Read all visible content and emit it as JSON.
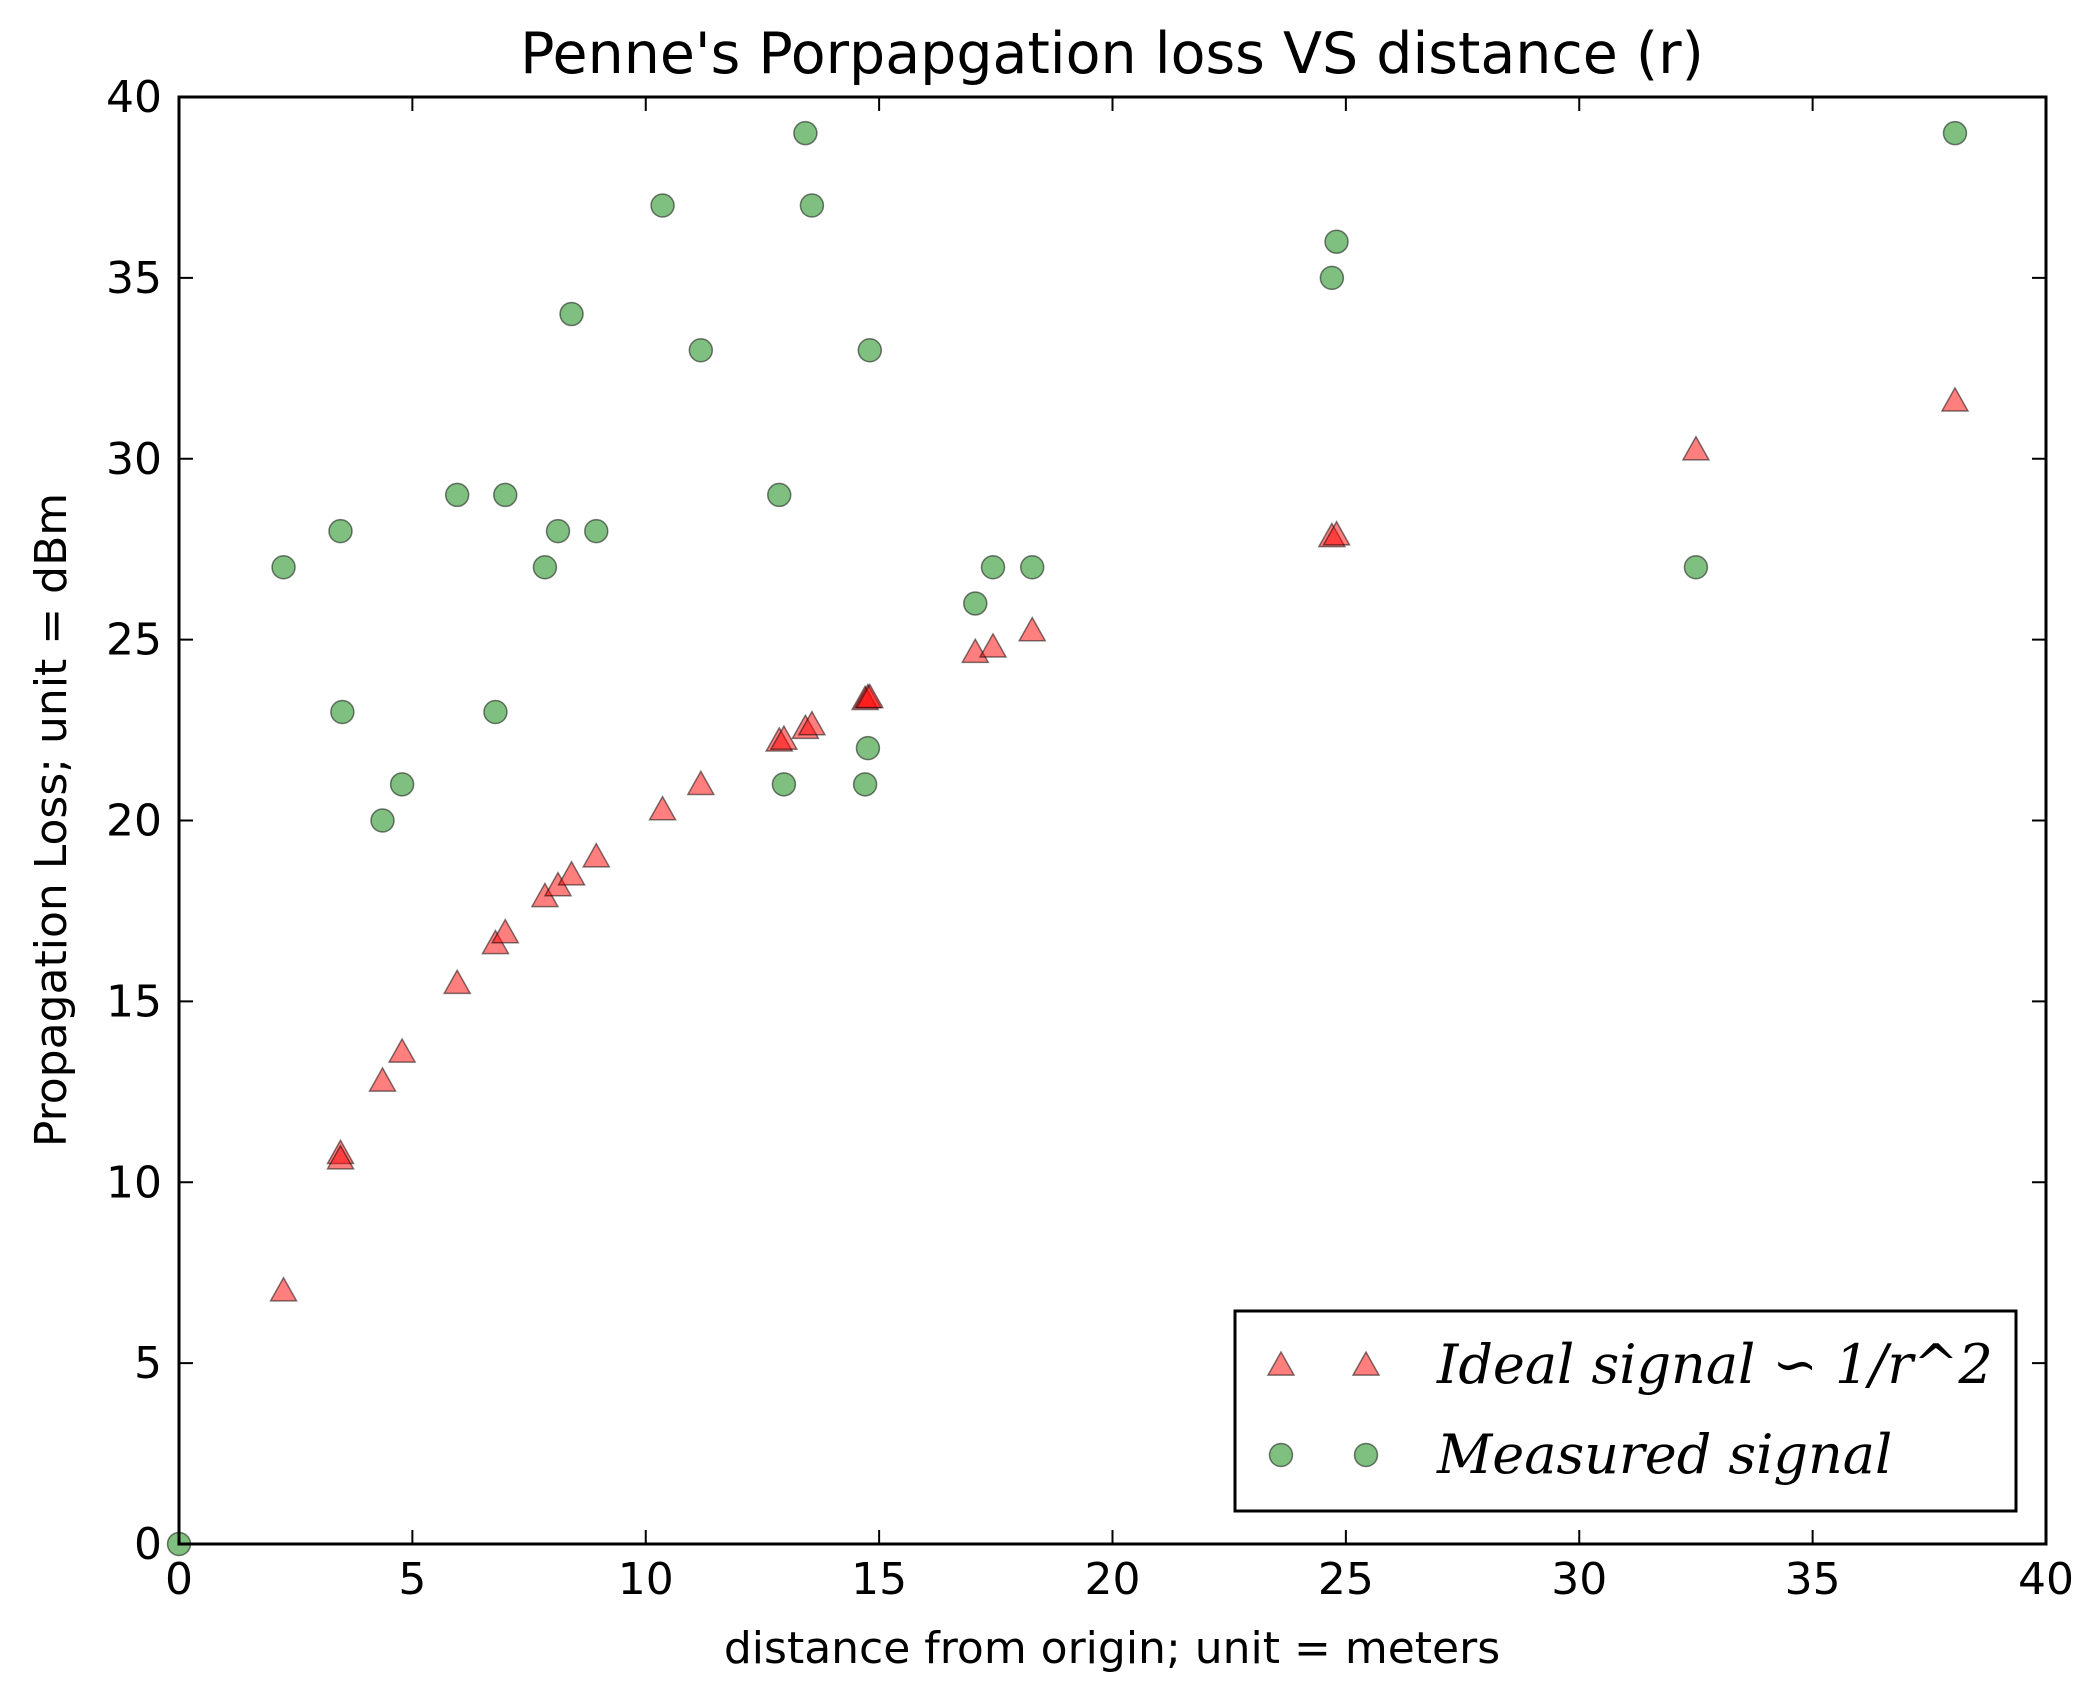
{
  "chart_data": {
    "type": "scatter",
    "title": "Penne's Porpapgation loss VS distance (r)",
    "xlabel": "distance from origin; unit = meters",
    "ylabel": "Propagation Loss; unit = dBm",
    "xlim": [
      0,
      40
    ],
    "ylim": [
      0,
      40
    ],
    "xticks": [
      "0",
      "5",
      "10",
      "15",
      "20",
      "25",
      "30",
      "35",
      "40"
    ],
    "yticks": [
      "0",
      "5",
      "10",
      "15",
      "20",
      "25",
      "30",
      "35",
      "40"
    ],
    "grid": false,
    "legend_position": "bottom-right",
    "series": [
      {
        "name": "Ideal signal ∽ 1/r^2",
        "marker": "triangle",
        "color": "#ff0000",
        "points": [
          [
            2.24,
            7.0
          ],
          [
            3.46,
            10.8
          ],
          [
            3.46,
            10.65
          ],
          [
            4.36,
            12.8
          ],
          [
            4.78,
            13.6
          ],
          [
            5.96,
            15.5
          ],
          [
            6.78,
            16.6
          ],
          [
            6.99,
            16.9
          ],
          [
            7.84,
            17.9
          ],
          [
            8.12,
            18.2
          ],
          [
            8.41,
            18.5
          ],
          [
            8.94,
            19.0
          ],
          [
            10.36,
            20.3
          ],
          [
            11.18,
            21.0
          ],
          [
            12.86,
            22.2
          ],
          [
            12.96,
            22.25
          ],
          [
            13.42,
            22.55
          ],
          [
            13.56,
            22.65
          ],
          [
            14.7,
            23.35
          ],
          [
            14.76,
            23.4
          ],
          [
            14.8,
            23.4
          ],
          [
            17.06,
            24.65
          ],
          [
            17.44,
            24.8
          ],
          [
            18.28,
            25.25
          ],
          [
            24.7,
            27.85
          ],
          [
            24.8,
            27.9
          ],
          [
            32.5,
            30.25
          ],
          [
            38.05,
            31.6
          ]
        ]
      },
      {
        "name": "Measured signal",
        "marker": "circle",
        "color": "#008000",
        "points": [
          [
            0.0,
            0.0
          ],
          [
            2.24,
            27.0
          ],
          [
            3.46,
            28.0
          ],
          [
            3.5,
            23.0
          ],
          [
            4.36,
            20.0
          ],
          [
            4.78,
            21.0
          ],
          [
            5.96,
            29.0
          ],
          [
            6.78,
            23.0
          ],
          [
            6.99,
            29.0
          ],
          [
            7.84,
            27.0
          ],
          [
            8.12,
            28.0
          ],
          [
            8.41,
            34.0
          ],
          [
            8.94,
            28.0
          ],
          [
            10.36,
            37.0
          ],
          [
            11.18,
            33.0
          ],
          [
            12.86,
            29.0
          ],
          [
            12.96,
            21.0
          ],
          [
            13.42,
            39.0
          ],
          [
            13.56,
            37.0
          ],
          [
            14.7,
            21.0
          ],
          [
            14.76,
            22.0
          ],
          [
            14.8,
            33.0
          ],
          [
            17.06,
            26.0
          ],
          [
            17.44,
            27.0
          ],
          [
            18.28,
            27.0
          ],
          [
            24.7,
            35.0
          ],
          [
            24.8,
            36.0
          ],
          [
            32.5,
            27.0
          ],
          [
            38.05,
            39.0
          ]
        ]
      }
    ]
  }
}
